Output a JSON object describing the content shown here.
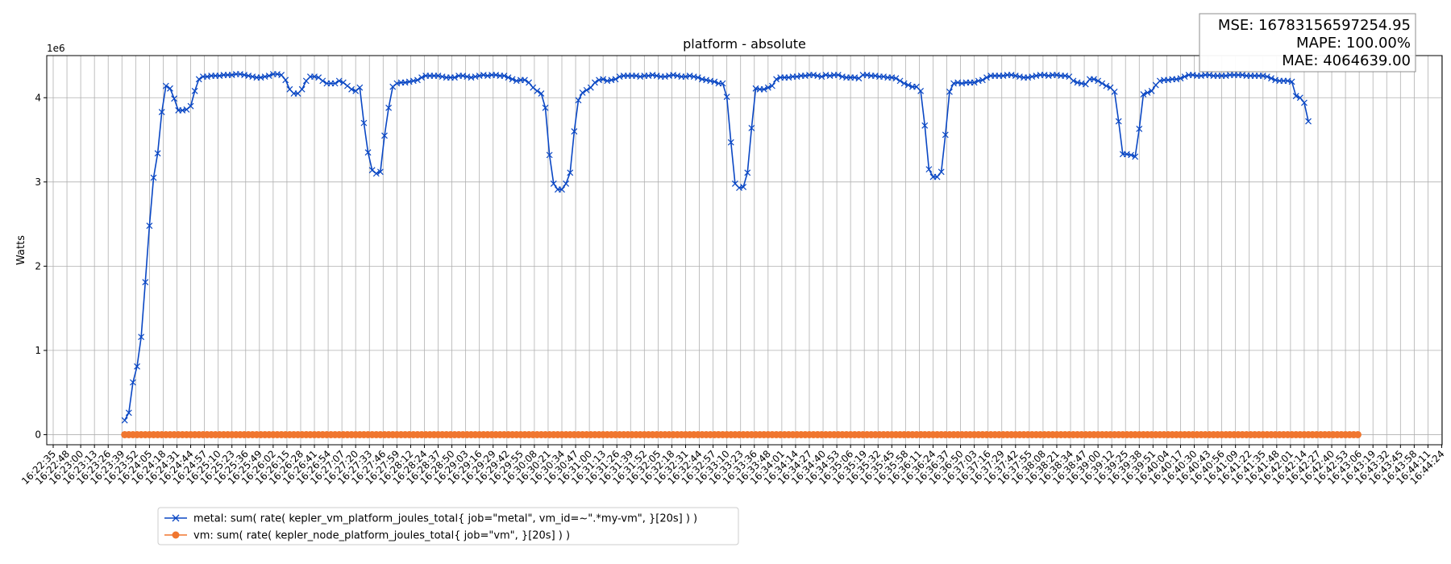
{
  "chart_data": {
    "type": "line",
    "title": "platform - absolute",
    "ylabel": "Watts",
    "xlabel": "",
    "y_multiplier_label": "1e6",
    "ylim": [
      -0.12,
      4.5
    ],
    "yticks": [
      0,
      1,
      2,
      3,
      4
    ],
    "grid": true,
    "legend_position": "bottom-left",
    "x_tick_labels": [
      "16:22:35",
      "16:22:48",
      "16:23:00",
      "16:23:13",
      "16:23:26",
      "16:23:39",
      "16:23:52",
      "16:24:05",
      "16:24:18",
      "16:24:31",
      "16:24:44",
      "16:24:57",
      "16:25:10",
      "16:25:23",
      "16:25:36",
      "16:25:49",
      "16:26:02",
      "16:26:15",
      "16:26:28",
      "16:26:41",
      "16:26:54",
      "16:27:07",
      "16:27:20",
      "16:27:33",
      "16:27:46",
      "16:27:59",
      "16:28:12",
      "16:28:24",
      "16:28:37",
      "16:28:50",
      "16:29:03",
      "16:29:16",
      "16:29:29",
      "16:29:42",
      "16:29:55",
      "16:30:08",
      "16:30:21",
      "16:30:34",
      "16:30:47",
      "16:31:00",
      "16:31:13",
      "16:31:26",
      "16:31:39",
      "16:31:52",
      "16:32:05",
      "16:32:18",
      "16:32:31",
      "16:32:44",
      "16:32:57",
      "16:33:10",
      "16:33:23",
      "16:33:36",
      "16:33:48",
      "16:34:01",
      "16:34:14",
      "16:34:27",
      "16:34:40",
      "16:34:53",
      "16:35:06",
      "16:35:19",
      "16:35:32",
      "16:35:45",
      "16:35:58",
      "16:36:11",
      "16:36:24",
      "16:36:37",
      "16:36:50",
      "16:37:03",
      "16:37:16",
      "16:37:29",
      "16:37:42",
      "16:37:55",
      "16:38:08",
      "16:38:21",
      "16:38:34",
      "16:38:47",
      "16:39:00",
      "16:39:12",
      "16:39:25",
      "16:39:38",
      "16:39:51",
      "16:40:04",
      "16:40:17",
      "16:40:30",
      "16:40:43",
      "16:40:56",
      "16:41:09",
      "16:41:22",
      "16:41:35",
      "16:41:48",
      "16:42:01",
      "16:42:14",
      "16:42:27",
      "16:42:40",
      "16:42:53",
      "16:43:06",
      "16:43:19",
      "16:43:32",
      "16:43:45",
      "16:43:58",
      "16:44:11",
      "16:44:24"
    ],
    "x_start_tick_index": 5.2,
    "x_step_ticks": 0.3,
    "series": [
      {
        "name": "metal: sum( rate( kepler_vm_platform_joules_total{ job=\"metal\", vm_id=~\".*my-vm\", }[20s] ) )",
        "color": "#0a47c4",
        "marker": "x",
        "values": [
          0.17,
          0.26,
          0.62,
          0.81,
          1.16,
          1.81,
          2.48,
          3.05,
          3.34,
          3.83,
          4.14,
          4.11,
          3.99,
          3.85,
          3.85,
          3.86,
          3.9,
          4.08,
          4.22,
          4.25,
          4.25,
          4.26,
          4.26,
          4.26,
          4.27,
          4.27,
          4.27,
          4.28,
          4.28,
          4.27,
          4.26,
          4.25,
          4.24,
          4.24,
          4.25,
          4.26,
          4.28,
          4.28,
          4.27,
          4.21,
          4.1,
          4.05,
          4.05,
          4.1,
          4.2,
          4.25,
          4.25,
          4.24,
          4.2,
          4.17,
          4.17,
          4.17,
          4.2,
          4.18,
          4.14,
          4.1,
          4.08,
          4.12,
          3.7,
          3.35,
          3.14,
          3.1,
          3.12,
          3.55,
          3.88,
          4.13,
          4.17,
          4.18,
          4.18,
          4.19,
          4.2,
          4.21,
          4.24,
          4.26,
          4.26,
          4.26,
          4.26,
          4.25,
          4.24,
          4.24,
          4.24,
          4.26,
          4.26,
          4.25,
          4.24,
          4.25,
          4.26,
          4.27,
          4.26,
          4.27,
          4.27,
          4.26,
          4.26,
          4.24,
          4.22,
          4.2,
          4.21,
          4.21,
          4.18,
          4.12,
          4.08,
          4.05,
          3.88,
          3.32,
          2.98,
          2.91,
          2.91,
          2.98,
          3.11,
          3.6,
          3.97,
          4.06,
          4.09,
          4.12,
          4.18,
          4.21,
          4.22,
          4.2,
          4.21,
          4.22,
          4.25,
          4.26,
          4.26,
          4.26,
          4.26,
          4.25,
          4.26,
          4.26,
          4.27,
          4.26,
          4.25,
          4.25,
          4.26,
          4.27,
          4.26,
          4.25,
          4.25,
          4.26,
          4.25,
          4.24,
          4.22,
          4.21,
          4.2,
          4.19,
          4.17,
          4.17,
          4.01,
          3.47,
          2.98,
          2.93,
          2.94,
          3.11,
          3.64,
          4.11,
          4.1,
          4.1,
          4.12,
          4.14,
          4.22,
          4.24,
          4.24,
          4.24,
          4.25,
          4.25,
          4.26,
          4.26,
          4.27,
          4.27,
          4.26,
          4.25,
          4.27,
          4.26,
          4.27,
          4.27,
          4.25,
          4.24,
          4.24,
          4.24,
          4.23,
          4.27,
          4.27,
          4.26,
          4.26,
          4.25,
          4.25,
          4.24,
          4.24,
          4.23,
          4.2,
          4.17,
          4.15,
          4.13,
          4.13,
          4.08,
          3.67,
          3.15,
          3.06,
          3.06,
          3.12,
          3.56,
          4.07,
          4.17,
          4.18,
          4.17,
          4.18,
          4.18,
          4.18,
          4.2,
          4.21,
          4.24,
          4.26,
          4.26,
          4.26,
          4.26,
          4.27,
          4.27,
          4.26,
          4.25,
          4.24,
          4.24,
          4.25,
          4.26,
          4.27,
          4.27,
          4.26,
          4.27,
          4.27,
          4.26,
          4.26,
          4.25,
          4.2,
          4.18,
          4.17,
          4.16,
          4.22,
          4.22,
          4.2,
          4.17,
          4.14,
          4.12,
          4.07,
          3.72,
          3.33,
          3.33,
          3.32,
          3.3,
          3.63,
          4.04,
          4.06,
          4.08,
          4.15,
          4.2,
          4.21,
          4.21,
          4.22,
          4.22,
          4.23,
          4.25,
          4.27,
          4.27,
          4.26,
          4.26,
          4.27,
          4.27,
          4.26,
          4.26,
          4.26,
          4.26,
          4.27,
          4.27,
          4.27,
          4.27,
          4.26,
          4.26,
          4.26,
          4.26,
          4.26,
          4.25,
          4.23,
          4.21,
          4.2,
          4.2,
          4.2,
          4.19,
          4.02,
          4.0,
          3.94,
          3.72
        ]
      },
      {
        "name": "vm: sum( rate( kepler_node_platform_joules_total{ job=\"vm\", }[20s] ) )",
        "color": "#f0762f",
        "marker": "o",
        "values": [
          0,
          0,
          0,
          0,
          0,
          0,
          0,
          0,
          0,
          0,
          0,
          0,
          0,
          0,
          0,
          0,
          0,
          0,
          0,
          0,
          0,
          0,
          0,
          0,
          0,
          0,
          0,
          0,
          0,
          0,
          0,
          0,
          0,
          0,
          0,
          0,
          0,
          0,
          0,
          0,
          0,
          0,
          0,
          0,
          0,
          0,
          0,
          0,
          0,
          0,
          0,
          0,
          0,
          0,
          0,
          0,
          0,
          0,
          0,
          0,
          0,
          0,
          0,
          0,
          0,
          0,
          0,
          0,
          0,
          0,
          0,
          0,
          0,
          0,
          0,
          0,
          0,
          0,
          0,
          0,
          0,
          0,
          0,
          0,
          0,
          0,
          0,
          0,
          0,
          0,
          0,
          0,
          0,
          0,
          0,
          0,
          0,
          0,
          0,
          0,
          0,
          0,
          0,
          0,
          0,
          0,
          0,
          0,
          0,
          0,
          0,
          0,
          0,
          0,
          0,
          0,
          0,
          0,
          0,
          0,
          0,
          0,
          0,
          0,
          0,
          0,
          0,
          0,
          0,
          0,
          0,
          0,
          0,
          0,
          0,
          0,
          0,
          0,
          0,
          0,
          0,
          0,
          0,
          0,
          0,
          0,
          0,
          0,
          0,
          0,
          0,
          0,
          0,
          0,
          0,
          0,
          0,
          0,
          0,
          0,
          0,
          0,
          0,
          0,
          0,
          0,
          0,
          0,
          0,
          0,
          0,
          0,
          0,
          0,
          0,
          0,
          0,
          0,
          0,
          0,
          0,
          0,
          0,
          0,
          0,
          0,
          0,
          0,
          0,
          0,
          0,
          0,
          0,
          0,
          0,
          0,
          0,
          0,
          0,
          0,
          0,
          0,
          0,
          0,
          0,
          0,
          0,
          0,
          0,
          0,
          0,
          0,
          0,
          0,
          0,
          0,
          0,
          0,
          0,
          0,
          0,
          0,
          0,
          0,
          0,
          0,
          0,
          0,
          0,
          0,
          0,
          0,
          0,
          0,
          0,
          0,
          0,
          0,
          0,
          0,
          0,
          0,
          0,
          0,
          0,
          0,
          0,
          0,
          0,
          0,
          0,
          0,
          0,
          0,
          0,
          0,
          0,
          0,
          0,
          0,
          0,
          0,
          0,
          0,
          0,
          0,
          0,
          0,
          0,
          0,
          0,
          0,
          0,
          0,
          0,
          0,
          0,
          0,
          0,
          0,
          0,
          0,
          0,
          0,
          0,
          0,
          0,
          0,
          0,
          0,
          0,
          0,
          0,
          0,
          0,
          0,
          0,
          0,
          0,
          0
        ]
      }
    ],
    "metrics": {
      "mse": "MSE: 16783156597254.95",
      "mape": "MAPE: 100.00%",
      "mae": "MAE: 4064639.00"
    }
  }
}
